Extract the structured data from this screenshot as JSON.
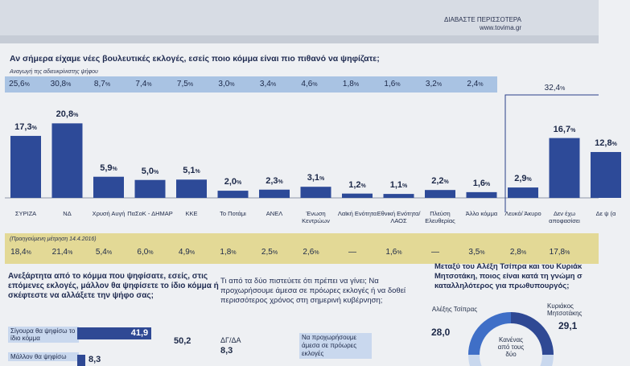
{
  "header": {
    "brand_line1": "ΔΙΑΒΑΣΤΕ ΠΕΡΙΣΣΟΤΕΡΑ",
    "brand_line2": "www.tovima.gr"
  },
  "chart_data": {
    "type": "bar",
    "title": "Αν σήμερα είχαμε νέες βουλευτικές εκλογές, εσείς ποιο κόμμα είναι πιο πιθανό να ψηφίζατε;",
    "reduction_label": "Αναγωγή της αδιευκρίνιστης ψήφου",
    "previous_label": "(Προηγούμενη μέτρηση 14.4.2016)",
    "categories": [
      "ΣΥΡΙΖΑ",
      "ΝΔ",
      "Χρυσή Αυγή",
      "ΠαΣοΚ - ΔΗΜΑΡ",
      "ΚΚΕ",
      "Το Ποτάμι",
      "ΑΝΕΛ",
      "Ένωση Κεντρώων",
      "Λαϊκή Ενότητα",
      "Εθνική Ενότητα/ ΛΑΟΣ",
      "Πλεύση Ελευθερίας",
      "Άλλο κόμμα",
      "Λευκό/ Άκυρο",
      "Δεν έχω αποφασίσει",
      "Δε ψ (α"
    ],
    "values": [
      17.3,
      20.8,
      5.9,
      5.0,
      5.1,
      2.0,
      2.3,
      3.1,
      1.2,
      1.1,
      2.2,
      1.6,
      2.9,
      16.7,
      12.8
    ],
    "value_labels": [
      "17,3",
      "20,8",
      "5,9",
      "5,0",
      "5,1",
      "2,0",
      "2,3",
      "3,1",
      "1,2",
      "1,1",
      "2,2",
      "1,6",
      "2,9",
      "16,7",
      "12,8"
    ],
    "reduction_values": [
      "25,6",
      "30,8",
      "8,7",
      "7,4",
      "7,5",
      "3,0",
      "3,4",
      "4,6",
      "1,8",
      "1,6",
      "3,2",
      "2,4"
    ],
    "previous_values": [
      "18,4",
      "21,4",
      "5,4",
      "6,0",
      "4,9",
      "1,8",
      "2,5",
      "2,6",
      "—",
      "1,6",
      "—",
      "3,5",
      "2,8",
      "17,8"
    ],
    "bracket_total": "32,4",
    "ylim": [
      0,
      22
    ],
    "unit": "%",
    "colors": {
      "bar": "#2d4a98",
      "reduction_band": "#a9c3e3",
      "previous_band": "#e3d996"
    }
  },
  "lower": {
    "q1": "Ανεξάρτητα από το κόμμα που ψηφίσατε, εσείς, στις επόμενες εκλογές, μάλλον θα ψηφίσετε το ίδιο κόμμα ή σκέφτεστε να αλλάξετε την ψήφο σας;",
    "q1_rows": [
      {
        "label": "Σίγουρα θα ψηφίσω το ίδιο κόμμα",
        "value": "41,9",
        "value_num": 41.9
      },
      {
        "label": "Μάλλον θα ψηφίσω",
        "value": "8,3",
        "value_num": 8.3
      }
    ],
    "q1_total": "50,2",
    "q2": "Τι από τα δύο πιστεύετε ότι πρέπει να γίνει; Να προχωρήσουμε άμεσα σε πρόωρες εκλογές ή να δοθεί περισσότερος χρόνος στη σημερινή κυβέρνηση;",
    "q2_label": "ΔΓ/ΔΑ",
    "q2_value": "8,3",
    "q2_option": "Να προχωρήσουμε άμεσα σε πρόωρες εκλογές",
    "q3": "Μεταξύ του Αλέξη Τσίπρα και του Κυριάκ Μητσοτάκη, ποιος είναι κατά τη γνώμη σ καταλληλότερος για πρωθυπουργός;",
    "q3_left_name": "Αλέξης Τσίπρας",
    "q3_left_value": "28,0",
    "q3_right_name": "Κυριάκος Μητσοτάκης",
    "q3_right_value": "29,1",
    "q3_center": "Κανένας από τους δύο"
  }
}
